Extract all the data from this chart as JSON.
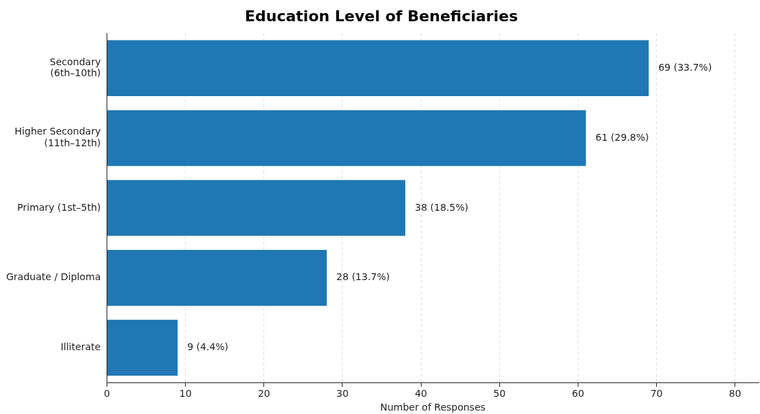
{
  "chart_data": {
    "type": "bar",
    "orientation": "horizontal",
    "title": "Education Level of Beneficiaries",
    "xlabel": "Number of Responses",
    "categories": [
      "Secondary\n(6th–10th)",
      "Higher Secondary\n(11th–12th)",
      "Primary (1st–5th)",
      "Graduate / Diploma",
      "Illiterate"
    ],
    "values": [
      69,
      61,
      38,
      28,
      9
    ],
    "value_labels": [
      "69 (33.7%)",
      "61 (29.8%)",
      "38 (18.5%)",
      "28 (13.7%)",
      "9 (4.4%)"
    ],
    "color": "#1f77b4",
    "xlim": [
      0,
      83
    ],
    "xticks": [
      0,
      10,
      20,
      30,
      40,
      50,
      60,
      70,
      80
    ],
    "grid": "x",
    "legend": false
  }
}
